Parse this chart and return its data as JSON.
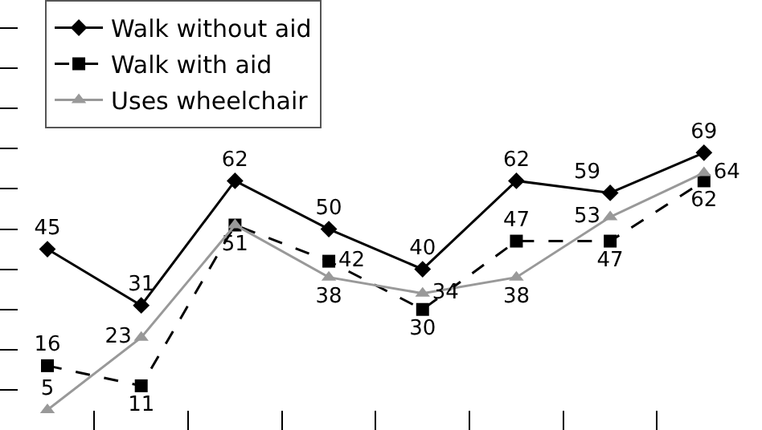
{
  "chart_data": {
    "type": "line",
    "categories": [
      null,
      null,
      null,
      null,
      null,
      null,
      null,
      null
    ],
    "series": [
      {
        "name": "Walk without aid",
        "color": "#000000",
        "marker": "diamond",
        "line_style": "solid",
        "values": [
          45,
          31,
          62,
          50,
          40,
          62,
          59,
          69
        ],
        "value_labels": [
          "45",
          "31",
          "62",
          "50",
          "40",
          "62",
          "59",
          "69"
        ]
      },
      {
        "name": "Walk with aid",
        "color": "#000000",
        "marker": "square",
        "line_style": "dashed",
        "values": [
          16,
          11,
          51,
          42,
          30,
          47,
          47,
          62
        ],
        "value_labels": [
          "16",
          "11",
          "51",
          "42",
          "30",
          "47",
          "47",
          "62"
        ]
      },
      {
        "name": "Uses wheelchair",
        "color": "#999999",
        "marker": "triangle",
        "line_style": "solid",
        "values": [
          5,
          23,
          51,
          38,
          34,
          38,
          53,
          64
        ],
        "value_labels": [
          "5",
          "23",
          null,
          "38",
          "34",
          "38",
          "53",
          "64"
        ]
      }
    ],
    "ylim": [
      0,
      107
    ],
    "yticks": [
      {
        "value": 10,
        "label": null
      },
      {
        "value": 20,
        "label": null
      },
      {
        "value": 30,
        "label": null
      },
      {
        "value": 40,
        "label": null
      },
      {
        "value": 50,
        "label": null
      },
      {
        "value": 60,
        "label": null
      },
      {
        "value": 70,
        "label": null
      },
      {
        "value": 80,
        "label": null
      },
      {
        "value": 90,
        "label": null
      },
      {
        "value": 100,
        "label": null
      }
    ],
    "grid": false,
    "legend": "top left"
  }
}
